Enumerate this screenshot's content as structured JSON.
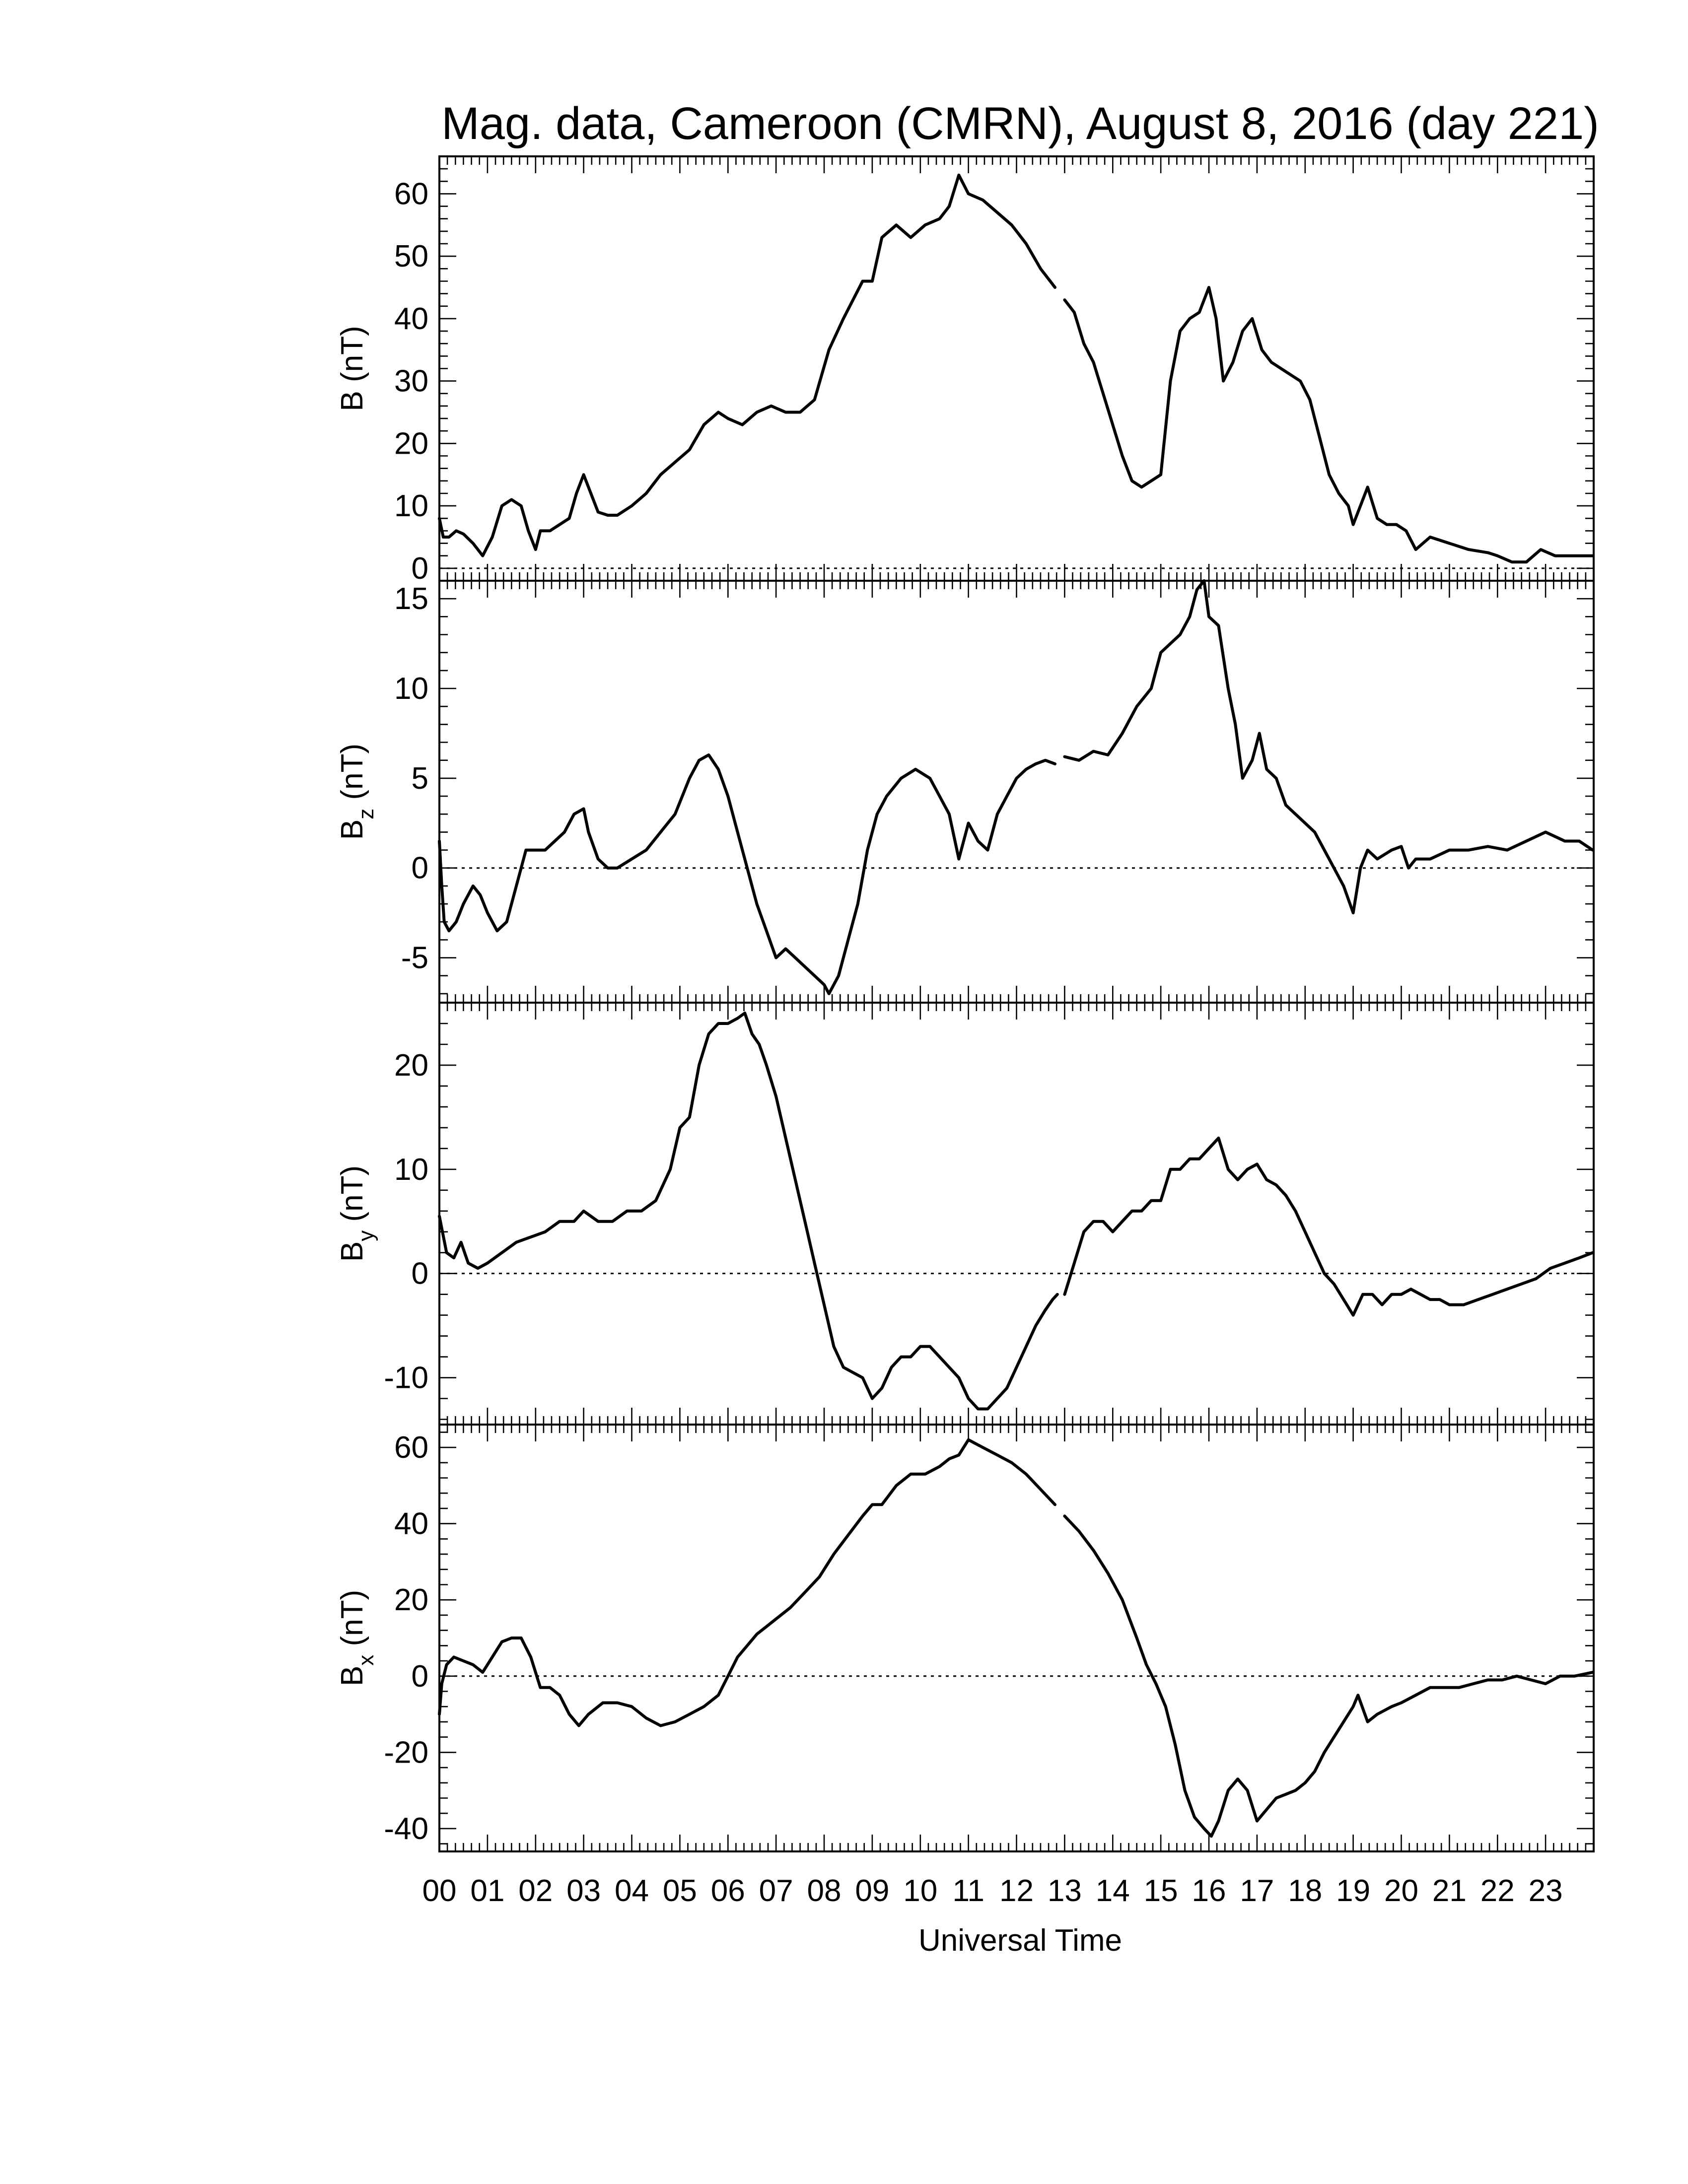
{
  "chart_data": {
    "type": "line",
    "title": "Mag. data, Cameroon (CMRN), August 8, 2016 (day 221)",
    "xlabel": "Universal Time",
    "x_unit": "hours UT",
    "xlim": [
      0,
      24
    ],
    "x_ticks": [
      "00",
      "01",
      "02",
      "03",
      "04",
      "05",
      "06",
      "07",
      "08",
      "09",
      "10",
      "11",
      "12",
      "13",
      "14",
      "15",
      "16",
      "17",
      "18",
      "19",
      "20",
      "21",
      "22",
      "23"
    ],
    "grid": false,
    "reference_line": "y = 0 (dotted)",
    "colors": {
      "line": "#000000",
      "background": "#ffffff"
    },
    "panels": [
      {
        "id": "B",
        "ylabel": {
          "main": "B",
          "sub": "",
          "unit": " (nT)"
        },
        "ylim": [
          -2,
          66
        ],
        "yticks": [
          0,
          10,
          20,
          30,
          40,
          50,
          60
        ],
        "segments": [
          {
            "x": [
              0,
              0.08,
              0.2,
              0.35,
              0.5,
              0.7,
              0.9,
              1.1,
              1.3,
              1.5,
              1.7,
              1.85,
              2.0,
              2.1,
              2.3,
              2.5,
              2.7,
              2.85,
              3.0,
              3.1,
              3.3,
              3.5,
              3.7,
              4.0,
              4.3,
              4.6,
              4.9,
              5.2,
              5.5,
              5.8,
              6.0,
              6.3,
              6.6,
              6.9,
              7.2,
              7.5,
              7.8,
              8.1,
              8.4,
              8.6,
              8.8,
              9.0,
              9.2,
              9.5,
              9.8,
              10.1,
              10.4,
              10.6,
              10.8,
              11.0,
              11.3,
              11.6,
              11.9,
              12.2,
              12.5,
              12.8
            ],
            "y": [
              8,
              5,
              5,
              6,
              5.5,
              4,
              2,
              5,
              10,
              11,
              10,
              6,
              3,
              6,
              6,
              7,
              8,
              12,
              15,
              13,
              9,
              8.5,
              8.5,
              10,
              12,
              15,
              17,
              19,
              23,
              25,
              24,
              23,
              25,
              26,
              25,
              25,
              27,
              35,
              40,
              43,
              46,
              46,
              53,
              55,
              53,
              55,
              56,
              58,
              63,
              60,
              59,
              57,
              55,
              52,
              48,
              45
            ]
          },
          {
            "x": [
              13.0,
              13.2,
              13.4,
              13.6,
              13.8,
              14.0,
              14.2,
              14.4,
              14.6,
              14.8,
              15.0,
              15.2,
              15.4,
              15.6,
              15.8,
              16.0,
              16.15,
              16.3,
              16.5,
              16.7,
              16.9,
              17.1,
              17.3,
              17.5,
              17.7,
              17.9,
              18.1,
              18.3,
              18.5,
              18.7,
              18.9,
              19.0,
              19.15,
              19.3,
              19.5,
              19.7,
              19.9,
              20.1,
              20.3,
              20.6,
              21.0,
              21.4,
              21.8,
              22.0,
              22.3,
              22.6,
              22.9,
              23.2,
              23.6,
              23.98
            ],
            "y": [
              43,
              41,
              36,
              33,
              28,
              23,
              18,
              14,
              13,
              14,
              15,
              30,
              38,
              40,
              41,
              45,
              40,
              30,
              33,
              38,
              40,
              35,
              33,
              32,
              31,
              30,
              27,
              21,
              15,
              12,
              10,
              7,
              10,
              13,
              8,
              7,
              7,
              6,
              3,
              5,
              4,
              3,
              2.5,
              2,
              1,
              1,
              3,
              2,
              2,
              2
            ]
          }
        ]
      },
      {
        "id": "Bz",
        "ylabel": {
          "main": "B",
          "sub": "z",
          "unit": " (nT)"
        },
        "ylim": [
          -7.5,
          16
        ],
        "yticks": [
          -5,
          0,
          5,
          10,
          15
        ],
        "segments": [
          {
            "x": [
              0,
              0.05,
              0.1,
              0.2,
              0.35,
              0.5,
              0.7,
              0.85,
              1.0,
              1.2,
              1.4,
              1.6,
              1.8,
              2.0,
              2.2,
              2.4,
              2.6,
              2.8,
              3.0,
              3.1,
              3.3,
              3.5,
              3.7,
              4.0,
              4.3,
              4.6,
              4.9,
              5.2,
              5.4,
              5.6,
              5.8,
              6.0,
              6.2,
              6.4,
              6.6,
              6.8,
              7.0,
              7.2,
              7.4,
              7.6,
              7.8,
              8.0,
              8.1,
              8.3,
              8.5,
              8.7,
              8.9,
              9.1,
              9.3,
              9.6,
              9.9,
              10.2,
              10.4,
              10.6,
              10.8,
              11.0,
              11.2,
              11.4,
              11.6,
              11.8,
              12.0,
              12.2,
              12.4,
              12.6,
              12.8
            ],
            "y": [
              1.5,
              -1,
              -3,
              -3.5,
              -3,
              -2,
              -1,
              -1.5,
              -2.5,
              -3.5,
              -3,
              -1,
              1,
              1,
              1,
              1.5,
              2,
              3,
              3.3,
              2,
              0.5,
              0,
              0,
              0.5,
              1,
              2,
              3,
              5,
              6,
              6.3,
              5.5,
              4,
              2,
              0,
              -2,
              -3.5,
              -5,
              -4.5,
              -5,
              -5.5,
              -6,
              -6.5,
              -7,
              -6,
              -4,
              -2,
              1,
              3,
              4,
              5,
              5.5,
              5,
              4,
              3,
              0.5,
              2.5,
              1.5,
              1,
              3,
              4,
              5,
              5.5,
              5.8,
              6,
              5.8
            ]
          },
          {
            "x": [
              13.0,
              13.3,
              13.6,
              13.9,
              14.2,
              14.5,
              14.8,
              15.0,
              15.2,
              15.4,
              15.6,
              15.75,
              15.9,
              16.0,
              16.2,
              16.4,
              16.55,
              16.7,
              16.9,
              17.05,
              17.2,
              17.4,
              17.6,
              17.8,
              18.0,
              18.2,
              18.4,
              18.6,
              18.8,
              19.0,
              19.15,
              19.3,
              19.5,
              19.8,
              20.0,
              20.15,
              20.3,
              20.6,
              21.0,
              21.4,
              21.8,
              22.2,
              22.6,
              23.0,
              23.4,
              23.7,
              23.98
            ],
            "y": [
              6.2,
              6,
              6.5,
              6.3,
              7.5,
              9,
              10,
              12,
              12.5,
              13,
              14,
              15.5,
              16,
              14,
              13.5,
              10,
              8,
              5,
              6,
              7.5,
              5.5,
              5,
              3.5,
              3,
              2.5,
              2,
              1,
              0,
              -1,
              -2.5,
              0,
              1,
              0.5,
              1,
              1.2,
              0,
              0.5,
              0.5,
              1,
              1,
              1.2,
              1,
              1.5,
              2,
              1.5,
              1.5,
              1
            ]
          }
        ]
      },
      {
        "id": "By",
        "ylabel": {
          "main": "B",
          "sub": "y",
          "unit": " (nT)"
        },
        "ylim": [
          -14.5,
          26
        ],
        "yticks": [
          -10,
          0,
          10,
          20
        ],
        "segments": [
          {
            "x": [
              0,
              0.15,
              0.3,
              0.45,
              0.6,
              0.8,
              1.0,
              1.3,
              1.6,
              1.9,
              2.2,
              2.5,
              2.8,
              3.0,
              3.3,
              3.6,
              3.9,
              4.2,
              4.5,
              4.8,
              5.0,
              5.2,
              5.4,
              5.6,
              5.8,
              6.0,
              6.2,
              6.35,
              6.5,
              6.65,
              6.8,
              7.0,
              7.2,
              7.4,
              7.6,
              7.8,
              8.0,
              8.2,
              8.4,
              8.6,
              8.8,
              9.0,
              9.2,
              9.4,
              9.6,
              9.8,
              10.0,
              10.2,
              10.4,
              10.6,
              10.8,
              11.0,
              11.2,
              11.4,
              11.6,
              11.8,
              12.0,
              12.2,
              12.4,
              12.6,
              12.75,
              12.85
            ],
            "y": [
              5.5,
              2,
              1.5,
              3,
              1,
              0.5,
              1,
              2,
              3,
              3.5,
              4,
              5,
              5,
              6,
              5,
              5,
              6,
              6,
              7,
              10,
              14,
              15,
              20,
              23,
              24,
              24,
              24.5,
              25,
              23,
              22,
              20,
              17,
              13,
              9,
              5,
              1,
              -3,
              -7,
              -9,
              -9.5,
              -10,
              -12,
              -11,
              -9,
              -8,
              -8,
              -7,
              -7,
              -8,
              -9,
              -10,
              -12,
              -13,
              -13,
              -12,
              -11,
              -9,
              -7,
              -5,
              -3.5,
              -2.5,
              -2
            ]
          },
          {
            "x": [
              13.0,
              13.2,
              13.4,
              13.6,
              13.8,
              14.0,
              14.2,
              14.4,
              14.6,
              14.8,
              15.0,
              15.2,
              15.4,
              15.6,
              15.8,
              16.0,
              16.2,
              16.4,
              16.6,
              16.8,
              17.0,
              17.2,
              17.4,
              17.6,
              17.8,
              18.0,
              18.2,
              18.4,
              18.6,
              18.8,
              19.0,
              19.2,
              19.4,
              19.6,
              19.8,
              20.0,
              20.2,
              20.4,
              20.6,
              20.8,
              21.0,
              21.3,
              21.6,
              21.9,
              22.2,
              22.5,
              22.8,
              23.1,
              23.4,
              23.7,
              23.98
            ],
            "y": [
              -2,
              1,
              4,
              5,
              5,
              4,
              5,
              6,
              6,
              7,
              7,
              10,
              10,
              11,
              11,
              12,
              13,
              10,
              9,
              10,
              10.5,
              9,
              8.5,
              7.5,
              6,
              4,
              2,
              0,
              -1,
              -2.5,
              -4,
              -2,
              -2,
              -3,
              -2,
              -2,
              -1.5,
              -2,
              -2.5,
              -2.5,
              -3,
              -3,
              -2.5,
              -2,
              -1.5,
              -1,
              -0.5,
              0.5,
              1,
              1.5,
              2
            ]
          }
        ]
      },
      {
        "id": "Bx",
        "ylabel": {
          "main": "B",
          "sub": "x",
          "unit": " (nT)"
        },
        "ylim": [
          -46,
          66
        ],
        "yticks": [
          -40,
          -20,
          0,
          20,
          40,
          60
        ],
        "segments": [
          {
            "x": [
              0,
              0.05,
              0.15,
              0.3,
              0.5,
              0.7,
              0.9,
              1.1,
              1.3,
              1.5,
              1.7,
              1.9,
              2.1,
              2.3,
              2.5,
              2.7,
              2.9,
              3.1,
              3.4,
              3.7,
              4.0,
              4.3,
              4.6,
              4.9,
              5.2,
              5.5,
              5.8,
              6.0,
              6.2,
              6.4,
              6.6,
              6.8,
              7.0,
              7.3,
              7.6,
              7.9,
              8.2,
              8.5,
              8.8,
              9.0,
              9.2,
              9.5,
              9.8,
              10.1,
              10.4,
              10.6,
              10.8,
              11.0,
              11.3,
              11.6,
              11.9,
              12.2,
              12.5,
              12.8
            ],
            "y": [
              -10,
              -2,
              3,
              5,
              4,
              3,
              1,
              5,
              9,
              10,
              10,
              5,
              -3,
              -3,
              -5,
              -10,
              -13,
              -10,
              -7,
              -7,
              -8,
              -11,
              -13,
              -12,
              -10,
              -8,
              -5,
              0,
              5,
              8,
              11,
              13,
              15,
              18,
              22,
              26,
              32,
              37,
              42,
              45,
              45,
              50,
              53,
              53,
              55,
              57,
              58,
              62,
              60,
              58,
              56,
              53,
              49,
              45
            ]
          },
          {
            "x": [
              13.0,
              13.3,
              13.6,
              13.9,
              14.2,
              14.5,
              14.7,
              14.9,
              15.1,
              15.3,
              15.5,
              15.7,
              15.9,
              16.05,
              16.2,
              16.4,
              16.6,
              16.8,
              17.0,
              17.2,
              17.4,
              17.6,
              17.8,
              18.0,
              18.2,
              18.4,
              18.6,
              18.8,
              19.0,
              19.1,
              19.3,
              19.5,
              19.8,
              20.0,
              20.3,
              20.6,
              20.9,
              21.2,
              21.5,
              21.8,
              22.1,
              22.4,
              22.7,
              23.0,
              23.3,
              23.6,
              23.98
            ],
            "y": [
              42,
              38,
              33,
              27,
              20,
              10,
              3,
              -2,
              -8,
              -18,
              -30,
              -37,
              -40,
              -42,
              -38,
              -30,
              -27,
              -30,
              -38,
              -35,
              -32,
              -31,
              -30,
              -28,
              -25,
              -20,
              -16,
              -12,
              -8,
              -5,
              -12,
              -10,
              -8,
              -7,
              -5,
              -3,
              -3,
              -3,
              -2,
              -1,
              -1,
              0,
              -1,
              -2,
              0,
              0,
              1
            ]
          }
        ]
      }
    ]
  }
}
